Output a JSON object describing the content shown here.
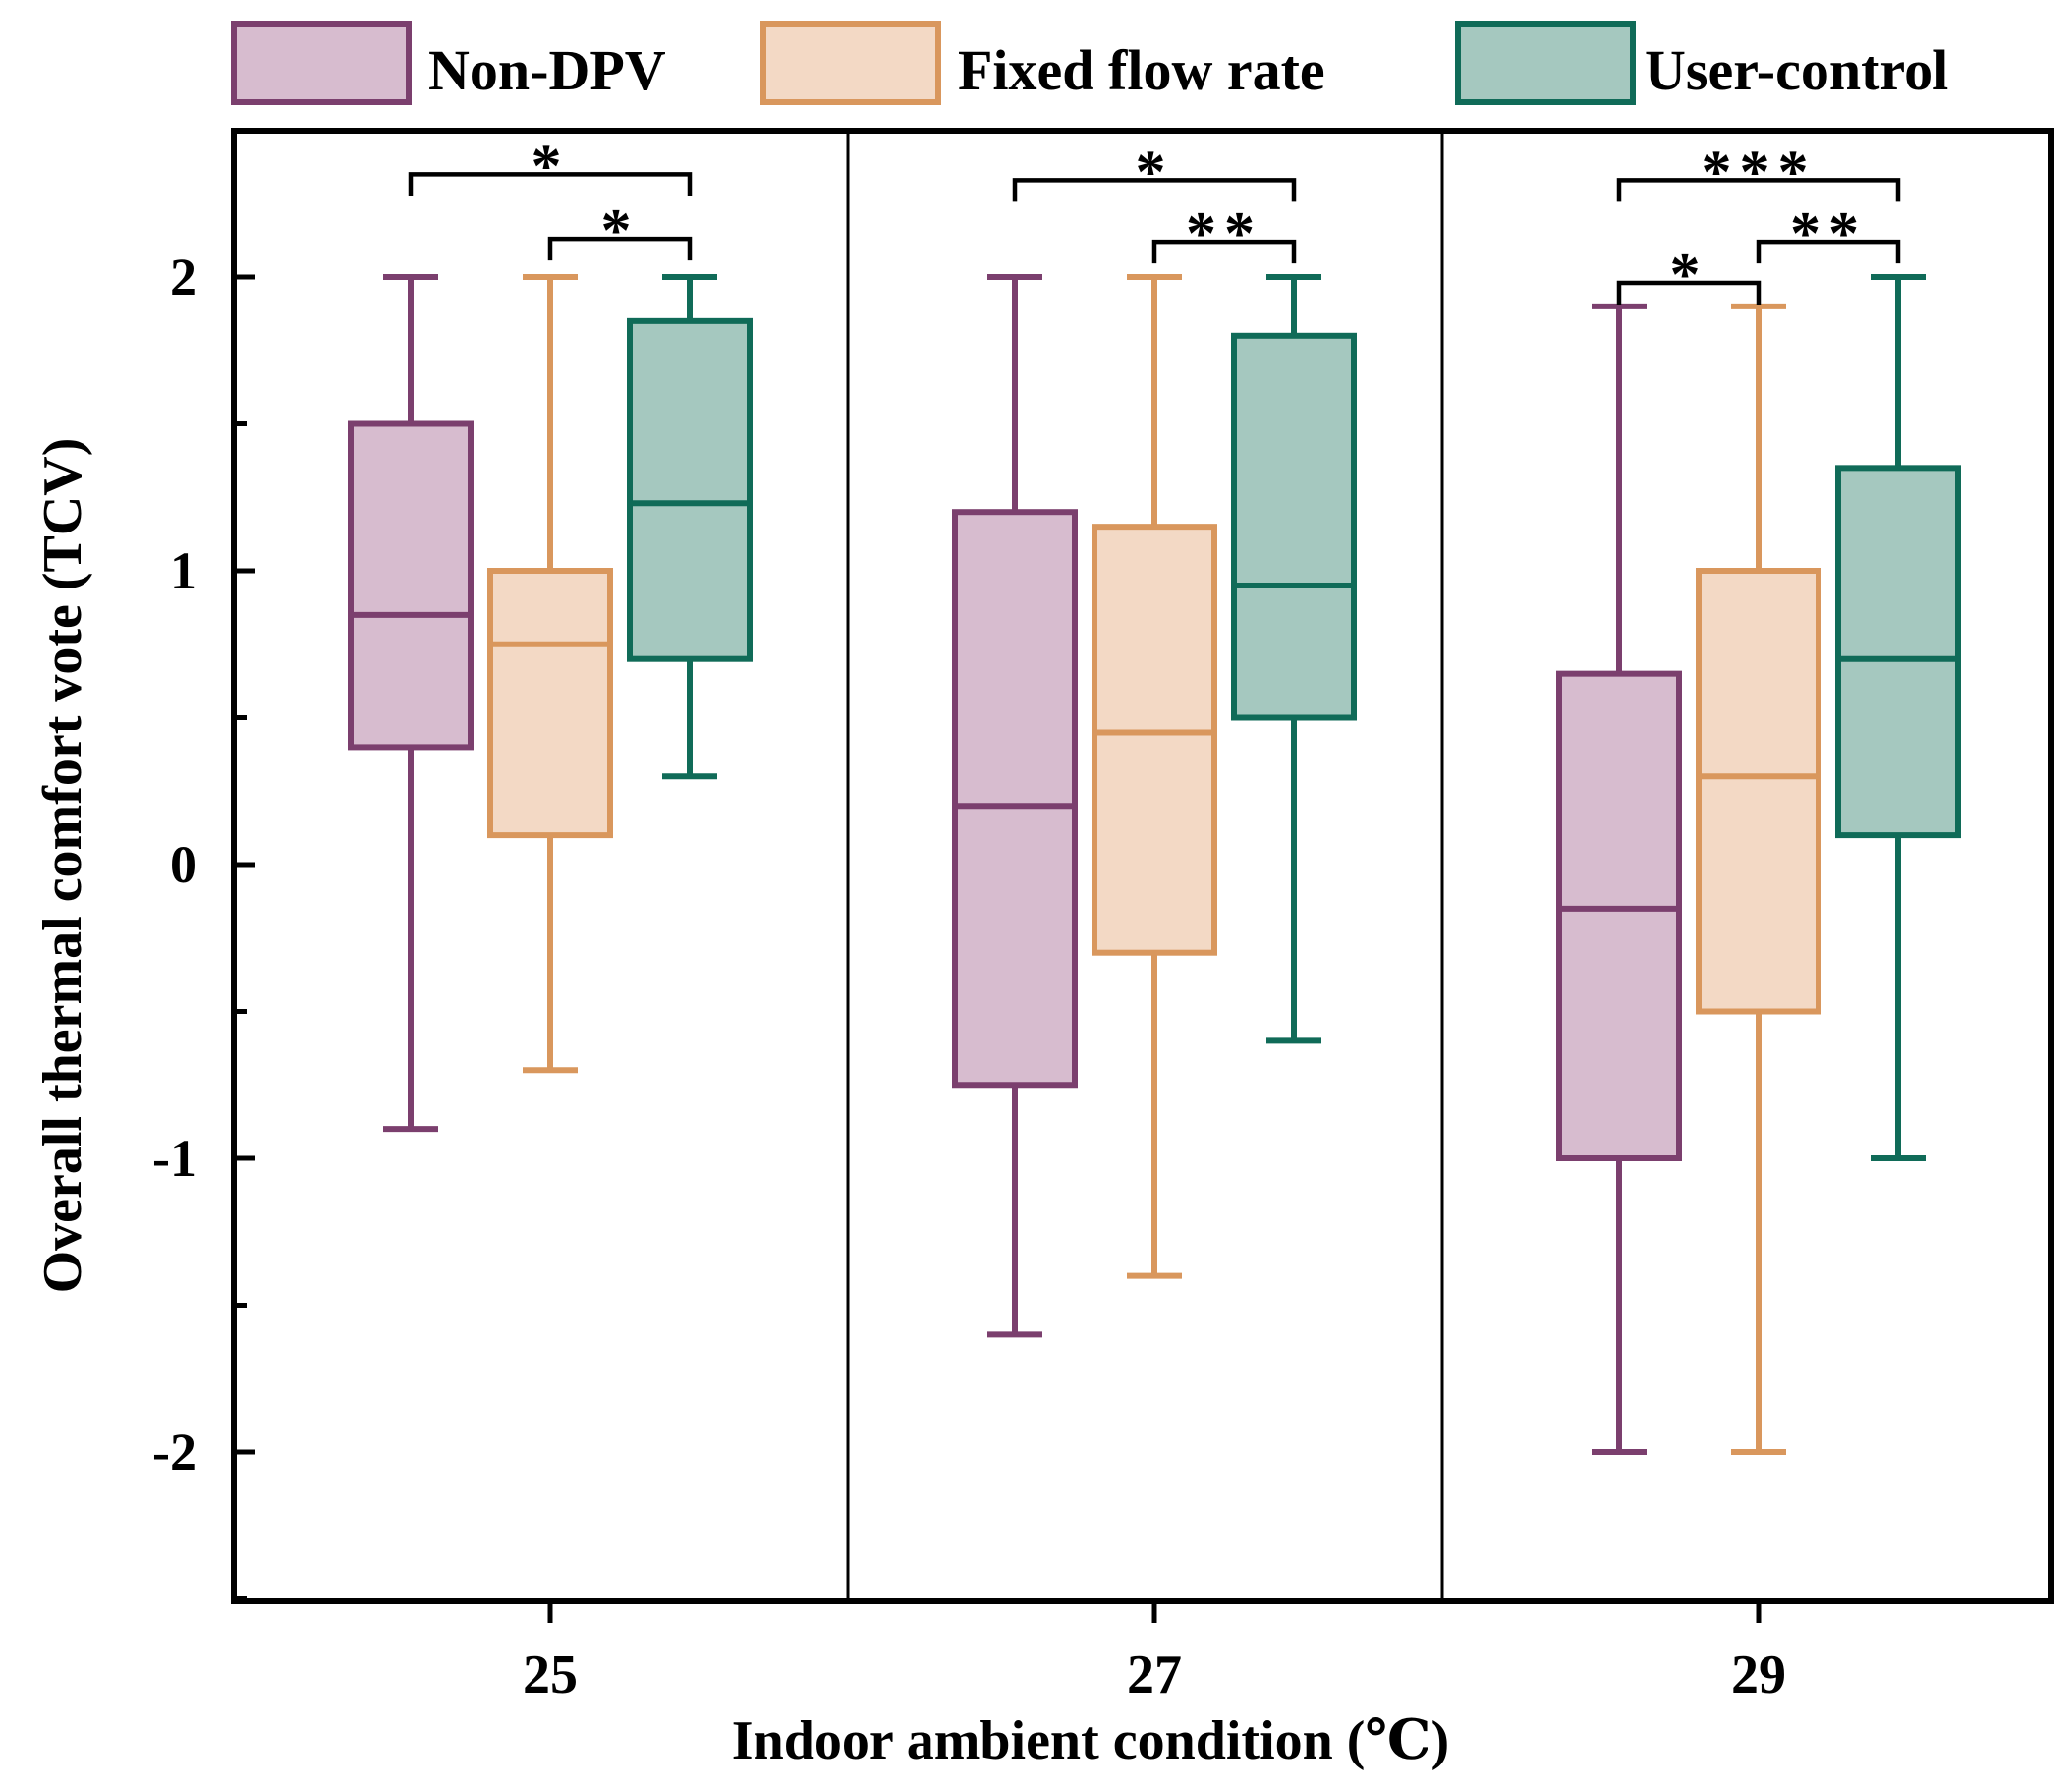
{
  "chart_data": {
    "type": "box",
    "xlabel": "Indoor ambient condition (℃)",
    "ylabel": "Overall thermal comfort vote (TCV)",
    "ylim": [
      -2.5,
      2.5
    ],
    "yticks": [
      -2,
      -1,
      0,
      1,
      2
    ],
    "ytick_labels": [
      "-2",
      "-1",
      "0",
      "1",
      "2"
    ],
    "categories": [
      "25",
      "27",
      "29"
    ],
    "legend_position": "top",
    "series": [
      {
        "name": "Non-DPV",
        "edge_color": "#7b3f6e",
        "fill_color": "#d7bccf",
        "boxes": [
          {
            "whisker_low": -0.9,
            "q1": 0.4,
            "median": 0.85,
            "q3": 1.5,
            "whisker_high": 2.0
          },
          {
            "whisker_low": -1.6,
            "q1": -0.75,
            "median": 0.2,
            "q3": 1.2,
            "whisker_high": 2.0
          },
          {
            "whisker_low": -2.0,
            "q1": -1.0,
            "median": -0.15,
            "q3": 0.65,
            "whisker_high": 1.9
          }
        ]
      },
      {
        "name": "Fixed flow rate",
        "edge_color": "#d9975d",
        "fill_color": "#f3d9c5",
        "boxes": [
          {
            "whisker_low": -0.7,
            "q1": 0.1,
            "median": 0.75,
            "q3": 1.0,
            "whisker_high": 2.0
          },
          {
            "whisker_low": -1.4,
            "q1": -0.3,
            "median": 0.45,
            "q3": 1.15,
            "whisker_high": 2.0
          },
          {
            "whisker_low": -2.0,
            "q1": -0.5,
            "median": 0.3,
            "q3": 1.0,
            "whisker_high": 1.9
          }
        ]
      },
      {
        "name": "User-control",
        "edge_color": "#106b58",
        "fill_color": "#a5c8bf",
        "boxes": [
          {
            "whisker_low": 0.3,
            "q1": 0.7,
            "median": 1.23,
            "q3": 1.85,
            "whisker_high": 2.0
          },
          {
            "whisker_low": -0.6,
            "q1": 0.5,
            "median": 0.95,
            "q3": 1.8,
            "whisker_high": 2.0
          },
          {
            "whisker_low": -1.0,
            "q1": 0.1,
            "median": 0.7,
            "q3": 1.35,
            "whisker_high": 2.0
          }
        ]
      }
    ],
    "significance": [
      {
        "group": 0,
        "from": 0,
        "to": 2,
        "label": "*",
        "y": 2.35
      },
      {
        "group": 0,
        "from": 1,
        "to": 2,
        "label": "*",
        "y": 2.13
      },
      {
        "group": 1,
        "from": 0,
        "to": 2,
        "label": "*",
        "y": 2.33
      },
      {
        "group": 1,
        "from": 1,
        "to": 2,
        "label": "**",
        "y": 2.12
      },
      {
        "group": 2,
        "from": 0,
        "to": 2,
        "label": "***",
        "y": 2.33
      },
      {
        "group": 2,
        "from": 1,
        "to": 2,
        "label": "**",
        "y": 2.12
      },
      {
        "group": 2,
        "from": 0,
        "to": 1,
        "label": "*",
        "y": 1.98
      }
    ]
  }
}
